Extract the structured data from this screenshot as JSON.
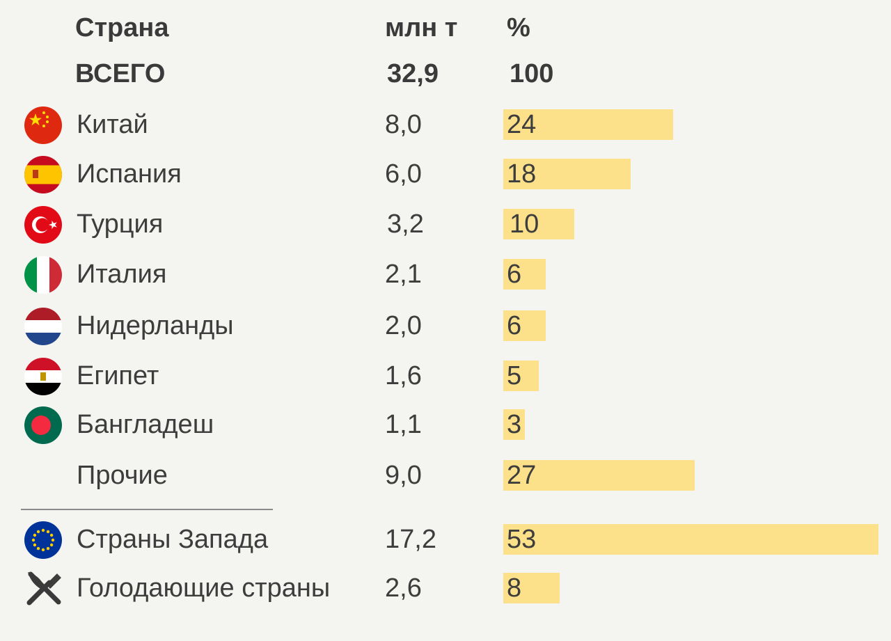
{
  "header": {
    "col_country": "Страна",
    "col_tonnes": "млн т",
    "col_percent": "%"
  },
  "total": {
    "label": "ВСЕГО",
    "value": "32,9",
    "percent": "100"
  },
  "chart_data": {
    "type": "bar",
    "title": "",
    "xlabel": "%",
    "ylabel": "Страна",
    "unit_values": "млн т",
    "max_percent": 53,
    "rows": [
      {
        "name": "Китай",
        "value": "8,0",
        "percent": 24,
        "icon": "china-flag-icon"
      },
      {
        "name": "Испания",
        "value": "6,0",
        "percent": 18,
        "icon": "spain-flag-icon"
      },
      {
        "name": "Турция",
        "value": "3,2",
        "percent": 10,
        "icon": "turkey-flag-icon"
      },
      {
        "name": "Италия",
        "value": "2,1",
        "percent": 6,
        "icon": "italy-flag-icon"
      },
      {
        "name": "Нидерланды",
        "value": "2,0",
        "percent": 6,
        "icon": "netherlands-flag-icon"
      },
      {
        "name": "Египет",
        "value": "1,6",
        "percent": 5,
        "icon": "egypt-flag-icon"
      },
      {
        "name": "Бангладеш",
        "value": "1,1",
        "percent": 3,
        "icon": "bangladesh-flag-icon"
      },
      {
        "name": "Прочие",
        "value": "9,0",
        "percent": 27,
        "icon": ""
      }
    ],
    "groups": [
      {
        "name": "Страны Запада",
        "value": "17,2",
        "percent": 53,
        "icon": "eu-flag-icon"
      },
      {
        "name": "Голодающие страны",
        "value": "2,6",
        "percent": 8,
        "icon": "fork-knife-icon"
      }
    ]
  },
  "colors": {
    "background": "#f4f4f0",
    "bar": "#fde18a",
    "text": "#3d3d3d"
  }
}
